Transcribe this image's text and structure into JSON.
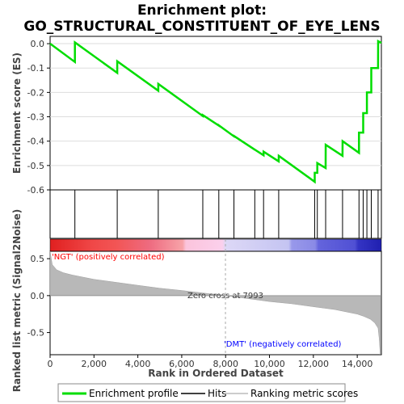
{
  "chart_data": {
    "type": "line",
    "title_line1": "Enrichment plot:",
    "title_line2": "GO_STRUCTURAL_CONSTITUENT_OF_EYE_LENS",
    "xlabel": "Rank in Ordered Dataset",
    "es_ylabel": "Enrichment score (ES)",
    "metric_ylabel": "Ranked list metric (Signal2Noise)",
    "x_range": [
      0,
      15100
    ],
    "x_ticks": [
      "0",
      "2,000",
      "4,000",
      "6,000",
      "8,000",
      "10,000",
      "12,000",
      "14,000"
    ],
    "x_tick_values": [
      0,
      2000,
      4000,
      6000,
      8000,
      10000,
      12000,
      14000
    ],
    "es_range": [
      -0.6,
      0.03
    ],
    "es_ticks": [
      "0.0",
      "-0.1",
      "-0.2",
      "-0.3",
      "-0.4",
      "-0.5",
      "-0.6"
    ],
    "es_tick_values": [
      0,
      -0.1,
      -0.2,
      -0.3,
      -0.4,
      -0.5,
      -0.6
    ],
    "metric_range": [
      -0.8,
      0.6
    ],
    "metric_ticks": [
      "0.5",
      "0.0",
      "-0.5"
    ],
    "metric_tick_values": [
      0.5,
      0,
      -0.5
    ],
    "hits": [
      1130,
      3060,
      4930,
      6960,
      7690,
      8380,
      9330,
      9730,
      10420,
      12060,
      12180,
      12560,
      13330,
      14080,
      14270,
      14440,
      14640,
      14950
    ],
    "series": [
      {
        "name": "Enrichment profile",
        "color": "#00dd00",
        "x": [
          0,
          1130,
          1131,
          3060,
          3061,
          4930,
          4931,
          6960,
          6961,
          7690,
          7691,
          8380,
          8381,
          9330,
          9331,
          9730,
          9731,
          10420,
          10421,
          12060,
          12061,
          12180,
          12181,
          12560,
          12561,
          13330,
          13331,
          14080,
          14081,
          14270,
          14271,
          14440,
          14441,
          14640,
          14641,
          14950,
          14951,
          15100
        ],
        "values": [
          0.0,
          -0.075,
          0.005,
          -0.12,
          -0.072,
          -0.193,
          -0.165,
          -0.297,
          -0.293,
          -0.336,
          -0.335,
          -0.38,
          -0.379,
          -0.435,
          -0.435,
          -0.458,
          -0.443,
          -0.483,
          -0.46,
          -0.567,
          -0.53,
          -0.53,
          -0.49,
          -0.51,
          -0.415,
          -0.46,
          -0.4,
          -0.448,
          -0.365,
          -0.365,
          -0.285,
          -0.285,
          -0.2,
          -0.2,
          -0.1,
          -0.1,
          0.01,
          0.003
        ]
      }
    ],
    "metric_curve": {
      "x": [
        0,
        100,
        300,
        600,
        1000,
        1500,
        2000,
        3000,
        4000,
        5000,
        6000,
        7000,
        7993,
        9000,
        10000,
        11000,
        12000,
        12500,
        13000,
        13500,
        14000,
        14300,
        14600,
        14800,
        14950,
        15000,
        15050
      ],
      "values": [
        0.6,
        0.42,
        0.35,
        0.31,
        0.28,
        0.25,
        0.22,
        0.18,
        0.14,
        0.1,
        0.07,
        0.035,
        0.0,
        -0.04,
        -0.08,
        -0.11,
        -0.15,
        -0.17,
        -0.19,
        -0.22,
        -0.25,
        -0.28,
        -0.32,
        -0.37,
        -0.44,
        -0.58,
        -0.8
      ]
    },
    "zero_cross_label": "Zero cross at 7993",
    "zero_cross_x": 7993,
    "pos_label": "'NGT' (positively correlated)",
    "neg_label": "'DMT' (negatively correlated)",
    "pos_label_color": "#ff0000",
    "neg_label_color": "#0000ff",
    "legend": [
      {
        "label": "Enrichment profile",
        "color": "#00dd00"
      },
      {
        "label": "Hits",
        "color": "#000000"
      },
      {
        "label": "Ranking metric scores",
        "color": "#bbbbbb"
      }
    ]
  }
}
